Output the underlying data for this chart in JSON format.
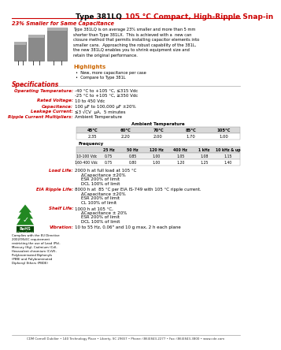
{
  "title_black": "Type 381LQ ",
  "title_red": "105 °C Compact, High-Ripple Snap-in",
  "subtitle": "23% Smaller for Same Capacitance",
  "bg_color": "#ffffff",
  "red_color": "#cc0000",
  "orange_color": "#cc6600",
  "body_text": "Type 381LQ is on average 23% smaller and more than 5 mm\nshorter than Type 381LX.  This is achieved with a  new can\nclosure method that permits installing capacitor elements into\nsmaller cans.  Approaching the robust capability of the 381L,\nthe new 381LQ enables you to shrink equipment size and\nretain the original performance.",
  "highlights_title": "Highlights",
  "highlights": [
    "New, more capacitance per case",
    "Compare to Type 381L"
  ],
  "spec_title": "Specifications",
  "specs": [
    [
      "Operating Temperature:",
      "-40 °C to +105 °C, ≤315 Vdc\n-25 °C to +105 °C, ≥350 Vdc"
    ],
    [
      "Rated Voltage:",
      "10 to 450 Vdc"
    ],
    [
      "Capacitance:",
      "100 μF to 100,000 μF ±20%"
    ],
    [
      "Leakage Current:",
      "≤3 √CV  μA,  5 minutes"
    ],
    [
      "Ripple Current Multipliers:",
      "Ambient Temperature"
    ]
  ],
  "amb_temp_headers": [
    "45°C",
    "60°C",
    "70°C",
    "85°C",
    "105°C"
  ],
  "amb_temp_values": [
    "2.35",
    "2.20",
    "2.00",
    "1.70",
    "1.00"
  ],
  "freq_sub_headers": [
    "25 Hz",
    "50 Hz",
    "120 Hz",
    "400 Hz",
    "1 kHz",
    "10 kHz & up"
  ],
  "freq_row1_label": "10-100 Vdc",
  "freq_row1": [
    "0.75",
    "0.85",
    "1.00",
    "1.05",
    "1.08",
    "1.15"
  ],
  "freq_row2_label": "160-400 Vdc",
  "freq_row2": [
    "0.75",
    "0.80",
    "1.00",
    "1.20",
    "1.25",
    "1.40"
  ],
  "load_life_label": "Load Life:",
  "load_life_lines": [
    "2000 h at full load at 105 °C",
    "ΔCapacitance ±20%",
    "ESR 200% of limit",
    "DCL 100% of limit"
  ],
  "eia_label": "EIA Ripple Life:",
  "eia_lines": [
    "8000 h at  85 °C per EIA IS-749 with 105 °C ripple current.",
    "ΔCapacitance ±20%",
    "ESR 200% of limit",
    "CL 100% of limit"
  ],
  "shelf_label": "Shelf Life:",
  "shelf_lines": [
    "1000 h at 105 °C,",
    "ΔCapacitance ± 20%",
    "ESR 200% of limit",
    "DCL 100% of limit"
  ],
  "vib_label": "Vibration:",
  "vib": "10 to 55 Hz, 0.06\" and 10 g max, 2 h each plane",
  "rohs_small": "Complies with the EU Directive\n2002/95/EC requirement\nrestricting the use of Lead (Pb),\nMercury (Hg), Cadmium (Cd),\nHexavalent chromium (CrVI),\nPolybrominated Biphenyls\n(PBB) and Polybrominated\nDiphenyl Ethers (PBDE)",
  "footer": "CDM Cornell Dubilier • 140 Technology Place • Liberty, SC 29657 • Phone: (864)843-2277 • Fax: (864)843-3800 • www.cde.com"
}
